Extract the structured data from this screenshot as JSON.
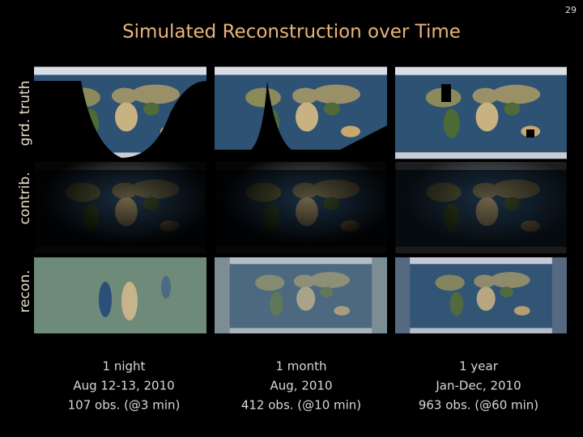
{
  "page_number": "29",
  "title": "Simulated Reconstruction over Time",
  "row_labels": [
    "grd. truth",
    "contrib.",
    "recon."
  ],
  "columns": [
    {
      "lines": [
        "1 night",
        "Aug 12-13, 2010",
        "107 obs. (@3 min)"
      ]
    },
    {
      "lines": [
        "1 month",
        "Aug, 2010",
        "412 obs. (@10 min)"
      ]
    },
    {
      "lines": [
        "1 year",
        "Jan-Dec, 2010",
        "963 obs. (@60 min)"
      ]
    }
  ]
}
